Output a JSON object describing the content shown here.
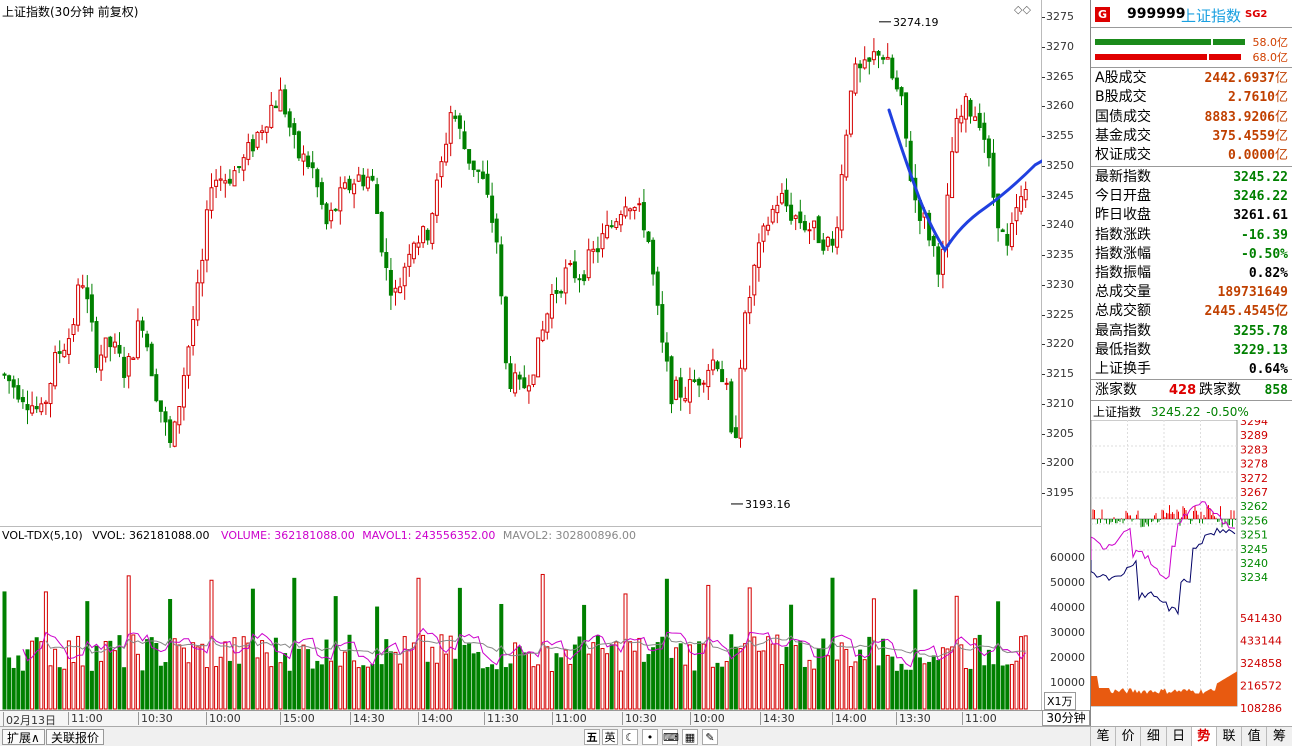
{
  "chart_title": "上证指数(30分钟 前复权)",
  "high_label": "3274.19",
  "low_label": "3193.16",
  "price_ticks": [
    "3275",
    "3270",
    "3265",
    "3260",
    "3255",
    "3250",
    "3245",
    "3240",
    "3235",
    "3230",
    "3225",
    "3220",
    "3215",
    "3210",
    "3205",
    "3200",
    "3195"
  ],
  "volume_header": {
    "indicator": "VOL-TDX(5,10)",
    "vvol": "VVOL: 362181088.00",
    "volume": "VOLUME: 362181088.00",
    "mavol1": "MAVOL1: 243556352.00",
    "mavol2": "MAVOL2: 302800896.00"
  },
  "vol_ticks": [
    "60000",
    "50000",
    "40000",
    "30000",
    "20000",
    "10000"
  ],
  "vol_unit": "X1万",
  "date_labels": [
    "02月13日",
    "11:00",
    "10:30",
    "10:00",
    "15:00",
    "14:30",
    "14:00",
    "11:30",
    "11:00",
    "10:30",
    "10:00",
    "14:30",
    "14:00",
    "13:30",
    "11:00"
  ],
  "period": "30分钟",
  "bottom": {
    "expand_btn": "扩展∧",
    "related_btn": "关联报价",
    "ime_cn": "五",
    "ime_en": "英"
  },
  "tabs": [
    "笔",
    "价",
    "细",
    "日",
    "势",
    "联",
    "值",
    "筹"
  ],
  "active_tab": "势",
  "quote": {
    "code": "999999",
    "name": "上证指数",
    "sg": "SG2",
    "bar1_value": "58.0亿",
    "bar2_value": "68.0亿",
    "volumes": [
      {
        "label": "A股成交",
        "value": "2442.6937",
        "unit": "亿"
      },
      {
        "label": "B股成交",
        "value": "2.7610",
        "unit": "亿"
      },
      {
        "label": "国债成交",
        "value": "8883.9206",
        "unit": "亿"
      },
      {
        "label": "基金成交",
        "value": "375.4559",
        "unit": "亿"
      },
      {
        "label": "权证成交",
        "value": "0.0000",
        "unit": "亿"
      }
    ],
    "stats": [
      {
        "label": "最新指数",
        "value": "3245.22",
        "color": "#008000"
      },
      {
        "label": "今日开盘",
        "value": "3246.22",
        "color": "#008000"
      },
      {
        "label": "昨日收盘",
        "value": "3261.61",
        "color": "#000000"
      },
      {
        "label": "指数涨跌",
        "value": "-16.39",
        "color": "#008000"
      },
      {
        "label": "指数涨幅",
        "value": "-0.50%",
        "color": "#008000"
      },
      {
        "label": "指数振幅",
        "value": "0.82%",
        "color": "#000000"
      },
      {
        "label": "总成交量",
        "value": "189731649",
        "color": "#c04000"
      },
      {
        "label": "总成交额",
        "value": "2445.4545亿",
        "color": "#c04000"
      },
      {
        "label": "最高指数",
        "value": "3255.78",
        "color": "#008000"
      },
      {
        "label": "最低指数",
        "value": "3229.13",
        "color": "#008000"
      },
      {
        "label": "上证换手",
        "value": "0.64%",
        "color": "#000000"
      }
    ],
    "up_label": "涨家数",
    "up_value": "428",
    "down_label": "跌家数",
    "down_value": "858"
  },
  "mini": {
    "title": "上证指数",
    "value": "3245.22",
    "pct": "-0.50%",
    "price_ticks": [
      "3294",
      "3289",
      "3283",
      "3278",
      "3272",
      "3267",
      "3262",
      "3256",
      "3251",
      "3245",
      "3240",
      "3234"
    ],
    "vol_ticks": [
      "541430",
      "433144",
      "324858",
      "216572",
      "108286"
    ]
  },
  "colors": {
    "up": "#d40000",
    "down": "#008000",
    "ma": "#2040e0",
    "mavol1": "#cc00cc",
    "mavol2": "#888888"
  }
}
